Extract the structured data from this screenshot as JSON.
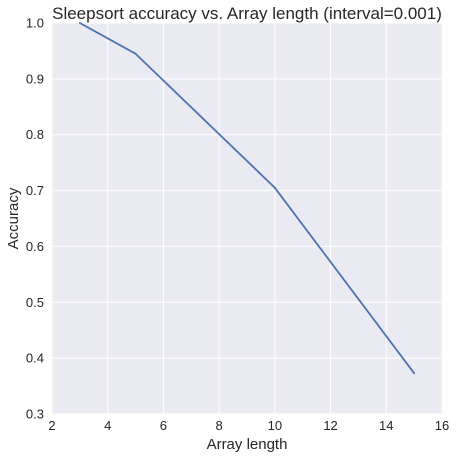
{
  "chart_data": {
    "type": "line",
    "title": "Sleepsort accuracy vs. Array length (interval=0.001)",
    "xlabel": "Array length",
    "ylabel": "Accuracy",
    "xlim": [
      2,
      16
    ],
    "ylim": [
      0.3,
      1.0
    ],
    "xticks": [
      "2",
      "4",
      "6",
      "8",
      "10",
      "12",
      "14",
      "16"
    ],
    "yticks": [
      "0.3",
      "0.4",
      "0.5",
      "0.6",
      "0.7",
      "0.8",
      "0.9",
      "1.0"
    ],
    "grid": true,
    "series": [
      {
        "x": [
          3,
          5,
          10,
          15
        ],
        "y": [
          1.0,
          0.945,
          0.705,
          0.373
        ]
      }
    ]
  },
  "colors": {
    "background": "#eaeaf2",
    "grid": "#ffffff",
    "line": "#4c72b0",
    "text": "#262626"
  }
}
